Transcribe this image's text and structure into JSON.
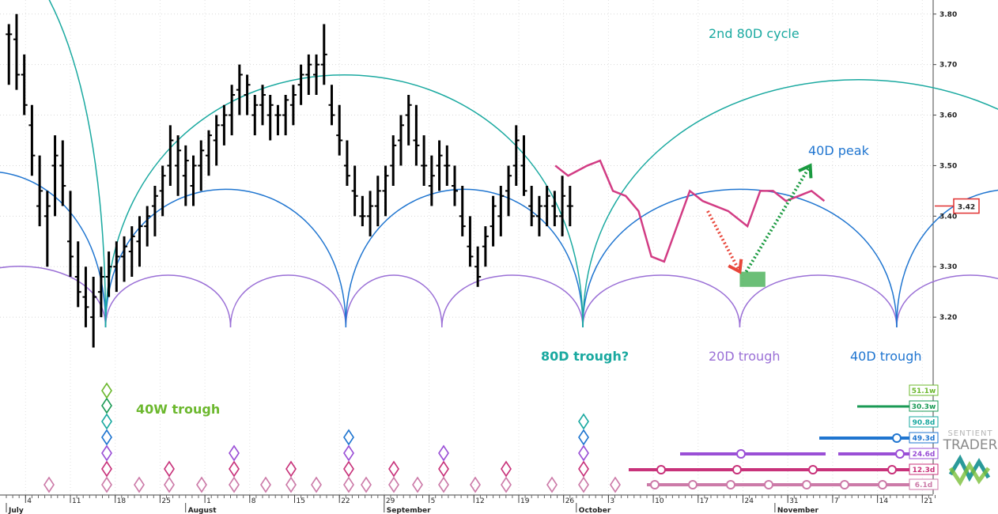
{
  "chart_data": {
    "type": "bar",
    "ohlc_note": "",
    "y_axis": {
      "min": 3.1,
      "max": 3.82,
      "ticks": [
        3.2,
        3.3,
        3.4,
        3.5,
        3.6,
        3.7,
        3.8
      ]
    },
    "last_price": "3.42",
    "x_months": [
      {
        "label": "July",
        "day": 0
      },
      {
        "label": "August",
        "day": 27
      },
      {
        "label": "September",
        "day": 58
      },
      {
        "label": "October",
        "day": 88
      },
      {
        "label": "November",
        "day": 119
      }
    ],
    "x_ticks": [
      {
        "label": "4",
        "day": 3
      },
      {
        "label": "11",
        "day": 10
      },
      {
        "label": "18",
        "day": 17
      },
      {
        "label": "25",
        "day": 24
      },
      {
        "label": "1",
        "day": 31
      },
      {
        "label": "8",
        "day": 38
      },
      {
        "label": "15",
        "day": 45
      },
      {
        "label": "22",
        "day": 52
      },
      {
        "label": "29",
        "day": 59
      },
      {
        "label": "5",
        "day": 66
      },
      {
        "label": "12",
        "day": 73
      },
      {
        "label": "19",
        "day": 80
      },
      {
        "label": "26",
        "day": 87
      },
      {
        "label": "3",
        "day": 94
      },
      {
        "label": "10",
        "day": 101
      },
      {
        "label": "17",
        "day": 108
      },
      {
        "label": "24",
        "day": 115
      },
      {
        "label": "31",
        "day": 122
      },
      {
        "label": "7",
        "day": 129
      },
      {
        "label": "14",
        "day": 136
      },
      {
        "label": "21",
        "day": 143
      }
    ],
    "bars": [
      [
        3.78,
        3.66,
        3.76,
        3.76
      ],
      [
        3.8,
        3.65,
        3.75,
        3.68
      ],
      [
        3.72,
        3.6,
        3.68,
        3.62
      ],
      [
        3.62,
        3.48,
        3.58,
        3.52
      ],
      [
        3.52,
        3.38,
        3.42,
        3.45
      ],
      [
        3.45,
        3.3,
        3.4,
        3.42
      ],
      [
        3.56,
        3.4,
        3.5,
        3.52
      ],
      [
        3.55,
        3.42,
        3.5,
        3.46
      ],
      [
        3.45,
        3.28,
        3.35,
        3.32
      ],
      [
        3.35,
        3.22,
        3.28,
        3.25
      ],
      [
        3.3,
        3.18,
        3.24,
        3.22
      ],
      [
        3.28,
        3.14,
        3.2,
        3.24
      ],
      [
        3.3,
        3.2,
        3.25,
        3.28
      ],
      [
        3.33,
        3.24,
        3.28,
        3.3
      ],
      [
        3.35,
        3.25,
        3.3,
        3.32
      ],
      [
        3.36,
        3.27,
        3.32,
        3.34
      ],
      [
        3.38,
        3.28,
        3.33,
        3.36
      ],
      [
        3.4,
        3.3,
        3.35,
        3.38
      ],
      [
        3.42,
        3.34,
        3.38,
        3.4
      ],
      [
        3.46,
        3.36,
        3.42,
        3.44
      ],
      [
        3.5,
        3.4,
        3.45,
        3.48
      ],
      [
        3.58,
        3.46,
        3.5,
        3.55
      ],
      [
        3.56,
        3.44,
        3.5,
        3.53
      ],
      [
        3.54,
        3.42,
        3.48,
        3.51
      ],
      [
        3.52,
        3.42,
        3.46,
        3.5
      ],
      [
        3.55,
        3.45,
        3.5,
        3.53
      ],
      [
        3.57,
        3.48,
        3.52,
        3.56
      ],
      [
        3.6,
        3.5,
        3.55,
        3.58
      ],
      [
        3.62,
        3.54,
        3.58,
        3.6
      ],
      [
        3.66,
        3.56,
        3.6,
        3.64
      ],
      [
        3.7,
        3.6,
        3.65,
        3.68
      ],
      [
        3.68,
        3.6,
        3.64,
        3.66
      ],
      [
        3.64,
        3.56,
        3.6,
        3.62
      ],
      [
        3.66,
        3.58,
        3.62,
        3.64
      ],
      [
        3.64,
        3.55,
        3.6,
        3.62
      ],
      [
        3.62,
        3.56,
        3.6,
        3.6
      ],
      [
        3.64,
        3.56,
        3.6,
        3.63
      ],
      [
        3.66,
        3.58,
        3.62,
        3.64
      ],
      [
        3.7,
        3.62,
        3.66,
        3.68
      ],
      [
        3.72,
        3.64,
        3.68,
        3.7
      ],
      [
        3.72,
        3.64,
        3.68,
        3.7
      ],
      [
        3.78,
        3.66,
        3.7,
        3.72
      ],
      [
        3.66,
        3.58,
        3.62,
        3.6
      ],
      [
        3.62,
        3.52,
        3.56,
        3.55
      ],
      [
        3.55,
        3.46,
        3.5,
        3.48
      ],
      [
        3.5,
        3.4,
        3.45,
        3.44
      ],
      [
        3.44,
        3.38,
        3.4,
        3.4
      ],
      [
        3.45,
        3.36,
        3.4,
        3.42
      ],
      [
        3.48,
        3.38,
        3.42,
        3.45
      ],
      [
        3.5,
        3.4,
        3.45,
        3.48
      ],
      [
        3.56,
        3.46,
        3.5,
        3.54
      ],
      [
        3.6,
        3.5,
        3.55,
        3.58
      ],
      [
        3.64,
        3.54,
        3.6,
        3.62
      ],
      [
        3.62,
        3.5,
        3.55,
        3.54
      ],
      [
        3.56,
        3.46,
        3.5,
        3.5
      ],
      [
        3.52,
        3.42,
        3.46,
        3.48
      ],
      [
        3.55,
        3.45,
        3.5,
        3.52
      ],
      [
        3.54,
        3.46,
        3.5,
        3.5
      ],
      [
        3.5,
        3.42,
        3.46,
        3.45
      ],
      [
        3.46,
        3.36,
        3.4,
        3.38
      ],
      [
        3.4,
        3.3,
        3.34,
        3.32
      ],
      [
        3.34,
        3.26,
        3.3,
        3.28
      ],
      [
        3.38,
        3.3,
        3.34,
        3.36
      ],
      [
        3.44,
        3.34,
        3.38,
        3.42
      ],
      [
        3.46,
        3.36,
        3.4,
        3.44
      ],
      [
        3.5,
        3.4,
        3.45,
        3.48
      ],
      [
        3.58,
        3.46,
        3.5,
        3.55
      ],
      [
        3.56,
        3.44,
        3.5,
        3.45
      ],
      [
        3.46,
        3.38,
        3.42,
        3.4
      ],
      [
        3.44,
        3.36,
        3.4,
        3.42
      ],
      [
        3.46,
        3.38,
        3.42,
        3.44
      ],
      [
        3.45,
        3.38,
        3.42,
        3.4
      ],
      [
        3.48,
        3.36,
        3.4,
        3.44
      ],
      [
        3.46,
        3.38,
        3.42,
        3.42
      ]
    ],
    "pink_forecast": {
      "name": "",
      "points": [
        [
          94,
          3.5
        ],
        [
          96,
          3.48
        ],
        [
          99,
          3.5
        ],
        [
          101,
          3.51
        ],
        [
          103,
          3.45
        ],
        [
          105,
          3.44
        ],
        [
          107,
          3.41
        ],
        [
          109,
          3.32
        ],
        [
          111,
          3.31
        ],
        [
          113,
          3.38
        ],
        [
          115,
          3.45
        ],
        [
          117,
          3.43
        ],
        [
          119,
          3.42
        ],
        [
          121,
          3.41
        ],
        [
          124,
          3.38
        ],
        [
          126,
          3.45
        ],
        [
          128,
          3.45
        ],
        [
          130,
          3.43
        ],
        [
          132,
          3.44
        ],
        [
          134,
          3.45
        ],
        [
          136,
          3.43
        ]
      ]
    },
    "arrow_down": {
      "from": [
        121,
        3.41
      ],
      "to": [
        126,
        3.29
      ]
    },
    "arrow_up": {
      "from": [
        127,
        3.29
      ],
      "to": [
        137,
        3.5
      ]
    },
    "target_box": {
      "x0": 126,
      "x1": 130,
      "y0": 3.26,
      "y1": 3.29
    },
    "annotations": [
      {
        "name": "label-2nd-80d-cycle",
        "text": "2nd 80D cycle",
        "color": "#1aa9a0"
      },
      {
        "name": "label-40d-peak",
        "text": "40D peak",
        "color": "#1f75d0"
      },
      {
        "name": "label-80d-trough",
        "text": "80D trough?",
        "color": "#1aa9a0"
      },
      {
        "name": "label-20d-trough",
        "text": "20D trough",
        "color": "#9a6fd6"
      },
      {
        "name": "label-40d-trough",
        "text": "40D trough",
        "color": "#1f75d0"
      },
      {
        "name": "label-40w-trough",
        "text": "40W trough",
        "color": "#6cb82e"
      }
    ],
    "periods": [
      {
        "label": "51.1w",
        "color": "#6cb82e"
      },
      {
        "label": "30.3w",
        "color": "#1a9a55"
      },
      {
        "label": "90.8d",
        "color": "#1aa9a0"
      },
      {
        "label": "49.3d",
        "color": "#1f75d0"
      },
      {
        "label": "24.6d",
        "color": "#9a4fd6"
      },
      {
        "label": "12.3d",
        "color": "#c8327a"
      },
      {
        "label": "6.1d",
        "color": "#cc7aa8"
      }
    ],
    "brand": {
      "line1": "SENTIENT",
      "line2": "TRADER"
    },
    "colors": {
      "teal": "#1aa9a0",
      "blue": "#1f75d0",
      "purple": "#9a6fd6",
      "pink": "#d23c84",
      "green": "#3aa94a",
      "red": "#e03030"
    }
  }
}
